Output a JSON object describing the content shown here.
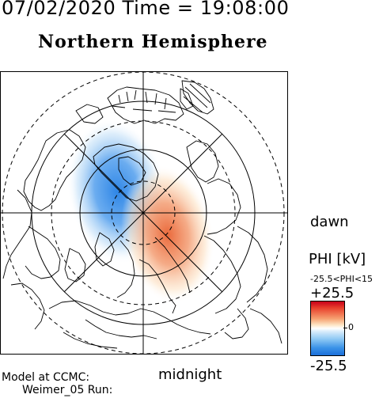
{
  "header": {
    "time_title": "07/02/2020 Time = 19:08:00",
    "hemisphere": "Northern Hemisphere"
  },
  "map": {
    "orientation_right": "dawn",
    "orientation_bottom": "midnight",
    "projection": "polar",
    "cells": {
      "dusk_cell": {
        "sign": "negative",
        "color": "#2f86e6"
      },
      "dawn_cell": {
        "sign": "positive",
        "color": "#ea6a3c"
      }
    }
  },
  "colorbar": {
    "title": "PHI [kV]",
    "range_text": "-25.5<PHI<15",
    "max_label": "+25.5",
    "zero_label": "0",
    "min_label": "-25.5",
    "max_color": "#c8001a",
    "min_color": "#1b6fd9"
  },
  "footer": {
    "line1": "Model at CCMC:",
    "line2": "Weimer_05 Run:"
  }
}
